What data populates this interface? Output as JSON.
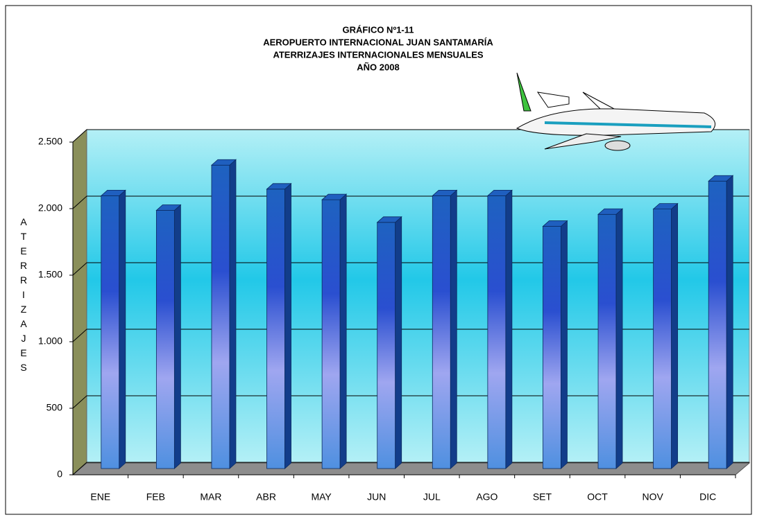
{
  "chart_data": {
    "type": "bar",
    "title": [
      "GRÁFICO Nº1-11",
      "AEROPUERTO INTERNACIONAL JUAN SANTAMARÍA",
      "ATERRIZAJES INTERNACIONALES MENSUALES",
      "AÑO 2008"
    ],
    "y_label": "ATERRIZAJES",
    "categories": [
      "ENE",
      "FEB",
      "MAR",
      "ABR",
      "MAY",
      "JUN",
      "JUL",
      "AGO",
      "SET",
      "OCT",
      "NOV",
      "DIC"
    ],
    "values": [
      2050,
      1940,
      2280,
      2100,
      2020,
      1850,
      2050,
      2050,
      1820,
      1910,
      1950,
      2160
    ],
    "color": "#1f5fbf",
    "ylim": [
      0,
      2500
    ],
    "yticks": [
      0,
      500,
      {
        "value": 1000,
        "label": "1.000"
      },
      {
        "value": 1500,
        "label": "1.500"
      },
      {
        "value": 2000,
        "label": "2.000"
      },
      {
        "value": 2500,
        "label": "2.500"
      }
    ],
    "grid": true
  }
}
